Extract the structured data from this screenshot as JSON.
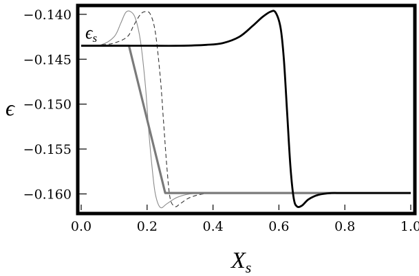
{
  "chart_data": {
    "type": "line",
    "xlabel": "X",
    "xlabel_sub": "s",
    "ylabel": "ϵ",
    "annotation": {
      "text": "ϵ",
      "sub": "s",
      "x": 0.02,
      "y": -0.1423
    },
    "xlim": [
      0,
      1
    ],
    "ylim": [
      -0.1618,
      -0.1394
    ],
    "xticks": [
      0.0,
      0.2,
      0.4,
      0.6,
      0.8,
      1.0
    ],
    "xtick_labels": [
      "0.0",
      "0.2",
      "0.4",
      "0.6",
      "0.8",
      "1.0"
    ],
    "yticks": [
      -0.14,
      -0.145,
      -0.15,
      -0.155,
      -0.16
    ],
    "ytick_labels": [
      "−0.140",
      "−0.145",
      "−0.150",
      "−0.155",
      "−0.160"
    ],
    "grid": false,
    "series": [
      {
        "style": "thin-gray",
        "color": "#8a8a8a",
        "x": [
          0.0,
          0.06,
          0.1,
          0.12,
          0.135,
          0.15,
          0.165,
          0.18,
          0.195,
          0.205,
          0.215,
          0.225,
          0.24,
          0.26,
          0.29,
          0.33,
          0.38,
          0.45,
          0.6,
          1.0
        ],
        "y": [
          -0.1435,
          -0.1434,
          -0.1425,
          -0.141,
          -0.1398,
          -0.1397,
          -0.1405,
          -0.143,
          -0.148,
          -0.153,
          -0.157,
          -0.16,
          -0.1615,
          -0.1611,
          -0.1604,
          -0.16,
          -0.1599,
          -0.1599,
          -0.1599,
          -0.1599
        ]
      },
      {
        "style": "dashed",
        "color": "#333333",
        "x": [
          0.0,
          0.06,
          0.1,
          0.14,
          0.16,
          0.18,
          0.195,
          0.21,
          0.225,
          0.24,
          0.25,
          0.26,
          0.27,
          0.285,
          0.3,
          0.33,
          0.37,
          0.42,
          0.6,
          1.0
        ],
        "y": [
          -0.1435,
          -0.1434,
          -0.1432,
          -0.1425,
          -0.1412,
          -0.14,
          -0.1397,
          -0.14,
          -0.142,
          -0.147,
          -0.152,
          -0.157,
          -0.1605,
          -0.1614,
          -0.1611,
          -0.1604,
          -0.16,
          -0.1599,
          -0.1599,
          -0.1599
        ]
      },
      {
        "style": "thick-gray",
        "color": "#7a7a7a",
        "x": [
          0.0,
          0.145,
          0.255,
          1.0
        ],
        "y": [
          -0.1435,
          -0.1435,
          -0.1599,
          -0.1599
        ]
      },
      {
        "style": "thick-black",
        "color": "#000000",
        "x": [
          0.0,
          0.1,
          0.2,
          0.3,
          0.38,
          0.43,
          0.48,
          0.52,
          0.55,
          0.575,
          0.59,
          0.605,
          0.615,
          0.625,
          0.635,
          0.645,
          0.655,
          0.67,
          0.69,
          0.72,
          0.76,
          0.8,
          1.0
        ],
        "y": [
          -0.1435,
          -0.1435,
          -0.1435,
          -0.1435,
          -0.1434,
          -0.1432,
          -0.1425,
          -0.1413,
          -0.1403,
          -0.1397,
          -0.1398,
          -0.1415,
          -0.145,
          -0.151,
          -0.157,
          -0.1605,
          -0.1614,
          -0.1613,
          -0.1606,
          -0.1601,
          -0.1599,
          -0.1599,
          -0.1599
        ]
      }
    ]
  }
}
